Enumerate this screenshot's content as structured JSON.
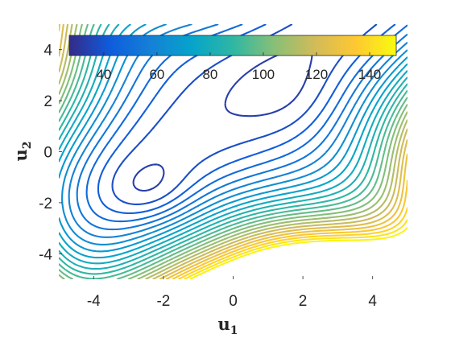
{
  "chart_data": {
    "type": "contour",
    "title": "",
    "xlabel": "u",
    "xlabel_sub": "1",
    "ylabel": "u",
    "ylabel_sub": "2",
    "xlim": [
      -5,
      5
    ],
    "ylim": [
      -5,
      5
    ],
    "x_ticks": [
      -4,
      -2,
      0,
      2,
      4
    ],
    "y_ticks": [
      -4,
      -2,
      0,
      2,
      4
    ],
    "x_tick_labels": [
      "-4",
      "-2",
      "0",
      "2",
      "4"
    ],
    "y_tick_labels": [
      "-4",
      "-2",
      "0",
      "2",
      "4"
    ],
    "colorbar": {
      "location": "inside top",
      "ticks": [
        40,
        60,
        80,
        100,
        120,
        140
      ],
      "tick_labels": [
        "40",
        "60",
        "80",
        "100",
        "120",
        "140"
      ],
      "range": [
        27,
        150
      ],
      "colormap": "parula",
      "stops": [
        "#352a87",
        "#0f5cdd",
        "#1481d6",
        "#06a4ca",
        "#2eb7a4",
        "#87bf77",
        "#d1bb59",
        "#fec832",
        "#f9fb0e"
      ]
    },
    "levels": [
      28,
      33,
      38,
      43,
      48,
      53,
      58,
      63,
      68,
      73,
      78,
      83,
      88,
      93,
      98,
      103,
      108,
      113,
      118,
      123,
      128,
      133,
      138,
      143,
      148
    ],
    "grid": false,
    "legend": "none"
  }
}
